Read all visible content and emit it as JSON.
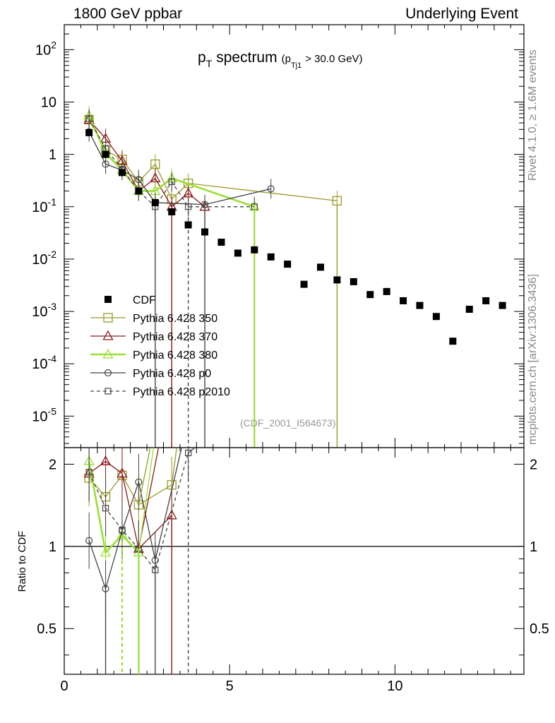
{
  "header": {
    "left": "1800 GeV ppbar",
    "right": "Underlying Event"
  },
  "side_labels": {
    "rivet": "Rivet 4.1.0, ≥ 1.6M events",
    "mcplots": "mcplots.cern.ch [arXiv:1306.3436]"
  },
  "chart_data": {
    "type": "scatter",
    "title_main": "p",
    "title_main_sub": "T",
    "title_word": "spectrum",
    "title_cut_open": "(p",
    "title_cut_sub": "Tj1",
    "title_cut_rest": "> 30.0 GeV)",
    "analysis_id": "(CDF_2001_I564673)",
    "ratio_ylabel": "Ratio to CDF",
    "x_ticks": [
      "0",
      "5",
      "10"
    ],
    "main_y_ticks": [
      "10^2",
      "10",
      "1",
      "10^-1",
      "10^-2",
      "10^-3",
      "10^-4",
      "10^-5"
    ],
    "ratio_y_ticks": [
      "2",
      "1",
      "0.5"
    ],
    "xlim": [
      0,
      13.9
    ],
    "main_ylim": [
      2.5e-06,
      300
    ],
    "ratio_ylim": [
      0.34,
      2.3
    ],
    "legend": [
      {
        "name": "CDF",
        "marker": "filled-square",
        "color": "#000000",
        "line": "none"
      },
      {
        "name": "Pythia 6.428 350",
        "marker": "open-square",
        "color": "#9a9a2a",
        "line": "solid"
      },
      {
        "name": "Pythia 6.428 370",
        "marker": "open-triangle",
        "color": "#8b1a1a",
        "line": "solid"
      },
      {
        "name": "Pythia 6.428 380",
        "marker": "open-triangle",
        "color": "#99e033",
        "line": "solid-thick"
      },
      {
        "name": "Pythia 6.428 p0",
        "marker": "open-circle",
        "color": "#444444",
        "line": "solid"
      },
      {
        "name": "Pythia 6.428 p2010",
        "marker": "open-square-small",
        "color": "#444444",
        "line": "dashed"
      }
    ],
    "data": {
      "x": [
        0.75,
        1.25,
        1.75,
        2.25,
        2.75,
        3.25,
        3.75,
        4.25,
        4.75,
        5.25,
        5.75,
        6.25,
        6.75,
        7.25,
        7.75,
        8.25,
        8.75,
        9.25,
        9.75,
        10.25,
        10.75,
        11.25,
        11.75,
        12.25,
        12.75,
        13.25
      ],
      "y": [
        2.6,
        1.0,
        0.45,
        0.2,
        0.12,
        0.08,
        0.045,
        0.033,
        0.021,
        0.013,
        0.015,
        0.011,
        0.008,
        0.0033,
        0.007,
        0.004,
        0.0037,
        0.0021,
        0.0024,
        0.0016,
        0.0013,
        0.0008,
        0.00027,
        0.0011,
        0.0016,
        0.0013
      ]
    },
    "series": [
      {
        "name": "Pythia 6.428 350",
        "x": [
          0.75,
          1.25,
          1.75,
          2.25,
          2.75,
          3.25,
          3.75,
          8.25
        ],
        "y": [
          4.6,
          1.2,
          0.8,
          0.3,
          0.65,
          0.14,
          0.28,
          0.13
        ]
      },
      {
        "name": "Pythia 6.428 370",
        "x": [
          0.75,
          1.25,
          1.75,
          2.25,
          2.75,
          3.25,
          3.75,
          4.25
        ],
        "y": [
          4.6,
          2.0,
          0.75,
          0.2,
          0.35,
          0.1,
          0.18,
          0.1
        ]
      },
      {
        "name": "Pythia 6.428 380",
        "x": [
          0.75,
          1.25,
          1.75,
          2.25,
          2.75,
          3.25,
          5.75
        ],
        "y": [
          5.5,
          1.05,
          0.5,
          0.2,
          0.2,
          0.35,
          0.1
        ]
      },
      {
        "name": "Pythia 6.428 p0",
        "x": [
          0.75,
          1.25,
          1.75,
          2.25,
          2.75,
          4.25,
          6.25
        ],
        "y": [
          2.7,
          0.65,
          0.5,
          0.33,
          0.12,
          0.11,
          0.22
        ]
      },
      {
        "name": "Pythia 6.428 p2010",
        "x": [
          0.75,
          1.25,
          1.75,
          2.25,
          2.75,
          3.25,
          3.75,
          5.75
        ],
        "y": [
          4.8,
          1.3,
          0.52,
          0.2,
          0.1,
          0.3,
          0.1,
          0.1
        ]
      }
    ],
    "ratio_series": [
      {
        "name": "Pythia 6.428 350",
        "x": [
          0.75,
          1.25,
          1.75,
          2.25,
          3.25
        ],
        "y": [
          1.78,
          1.52,
          1.82,
          1.42,
          1.68
        ]
      },
      {
        "name": "Pythia 6.428 370",
        "x": [
          0.75,
          1.25,
          1.75,
          2.25,
          3.25
        ],
        "y": [
          1.85,
          2.05,
          1.85,
          0.98,
          1.3
        ]
      },
      {
        "name": "Pythia 6.428 380",
        "x": [
          0.75,
          1.25,
          1.75,
          2.25
        ],
        "y": [
          2.05,
          0.95,
          1.1,
          0.95
        ]
      },
      {
        "name": "Pythia 6.428 p0",
        "x": [
          0.75,
          1.25,
          1.75,
          2.25,
          2.75
        ],
        "y": [
          1.05,
          0.7,
          1.14,
          1.72,
          0.89
        ]
      },
      {
        "name": "Pythia 6.428 p2010",
        "x": [
          0.75,
          1.25,
          1.75,
          2.25,
          2.75,
          3.75
        ],
        "y": [
          1.87,
          1.38,
          1.15,
          0.98,
          0.82,
          2.2
        ]
      }
    ]
  }
}
